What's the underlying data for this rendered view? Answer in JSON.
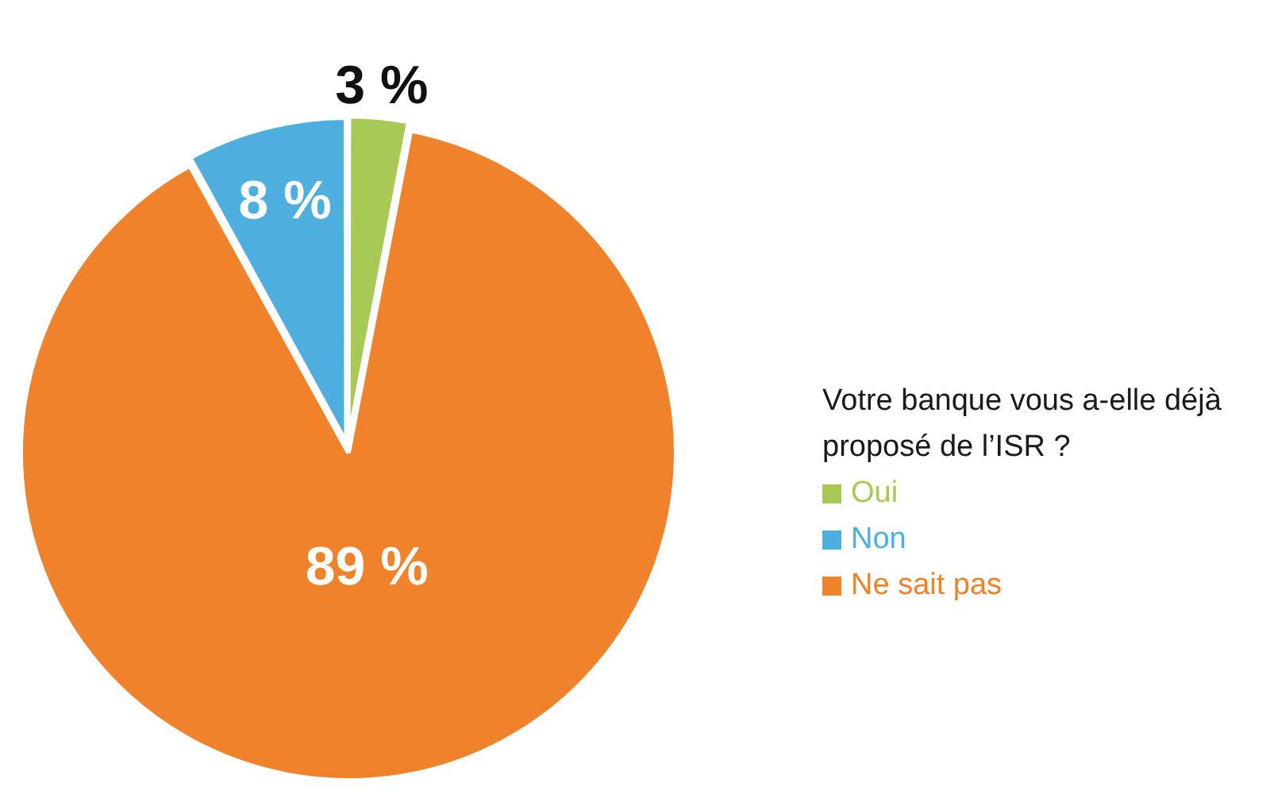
{
  "chart_data": {
    "type": "pie",
    "legend_title": "Votre banque vous a-elle déjà proposé de l’ISR ?",
    "legend": "right",
    "categories": [
      "Oui",
      "Non",
      "Ne sait pas"
    ],
    "values": [
      3,
      8,
      89
    ],
    "colors": [
      "#a8c956",
      "#4eaede",
      "#ef822b"
    ],
    "value_labels": [
      "3 %",
      "8 %",
      "89 %"
    ]
  }
}
